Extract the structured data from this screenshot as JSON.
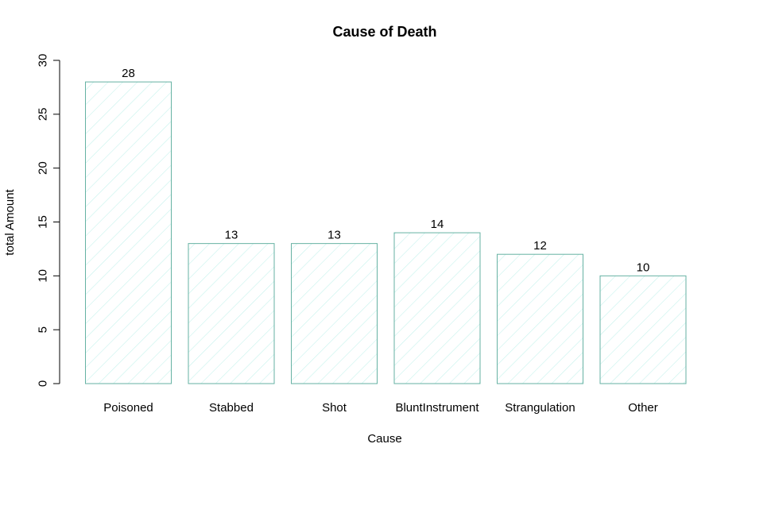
{
  "chart_data": {
    "type": "bar",
    "title": "Cause of Death",
    "xlabel": "Cause",
    "ylabel": "total Amount",
    "categories": [
      "Poisoned",
      "Stabbed",
      "Shot",
      "BluntInstrument",
      "Strangulation",
      "Other"
    ],
    "values": [
      28,
      13,
      13,
      14,
      12,
      10
    ],
    "ylim": [
      0,
      30
    ],
    "yticks": [
      0,
      5,
      10,
      15,
      20,
      25,
      30
    ],
    "grid": false,
    "legend": "none",
    "bar_fill": "hatched",
    "bar_color": "#66b2a3",
    "hatch_color": "#c6f2ec"
  }
}
